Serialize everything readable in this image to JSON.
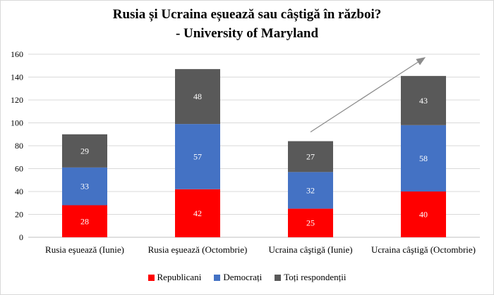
{
  "chart_data": {
    "type": "bar",
    "stacked": true,
    "title": "Rusia și Ucraina eșuează sau câștigă în război?",
    "subtitle": "- University of Maryland",
    "categories": [
      "Rusia eşuează (Iunie)",
      "Rusia eşuează (Octombrie)",
      "Ucraina câştigă (Iunie)",
      "Ucraina câştigă (Octombrie)"
    ],
    "series": [
      {
        "name": "Republicani",
        "color": "#ff0000",
        "values": [
          28,
          42,
          25,
          40
        ]
      },
      {
        "name": "Democrați",
        "color": "#4472c4",
        "values": [
          33,
          57,
          32,
          58
        ]
      },
      {
        "name": "Toți respondenții",
        "color": "#595959",
        "values": [
          29,
          48,
          27,
          43
        ]
      }
    ],
    "ylim": [
      0,
      160
    ],
    "yticks": [
      0,
      20,
      40,
      60,
      80,
      100,
      120,
      140,
      160
    ],
    "grid": true,
    "legend_position": "bottom",
    "annotation": "trend arrow from Ucraina câştigă (Iunie) toward Ucraina câştigă (Octombrie)"
  }
}
